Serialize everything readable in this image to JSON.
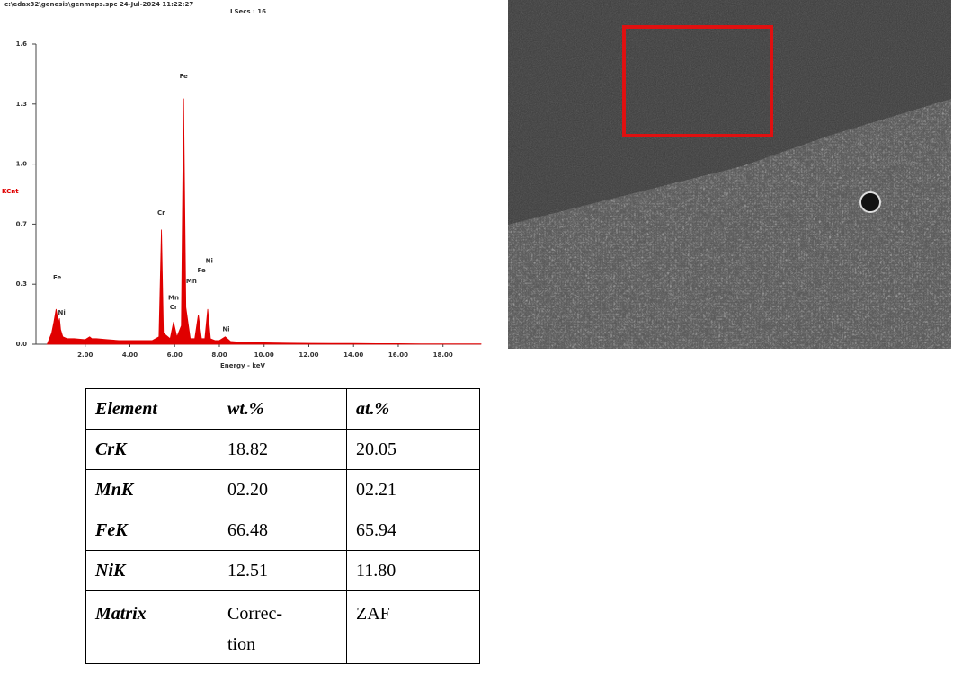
{
  "chart_data": {
    "type": "area",
    "title": "c:\\edax32\\genesis\\genmaps.spc 24-Jul-2024 11:22:27",
    "subtitle": "LSecs : 16",
    "x_label": "Energy - keV",
    "y_label": "KCnt",
    "xlim": [
      0,
      19.7
    ],
    "ylim": [
      0,
      1.625
    ],
    "xticks": [
      {
        "value": 2,
        "label": "2.00"
      },
      {
        "value": 4,
        "label": "4.00"
      },
      {
        "value": 6,
        "label": "6.00"
      },
      {
        "value": 8,
        "label": "8.00"
      },
      {
        "value": 10,
        "label": "10.00"
      },
      {
        "value": 12,
        "label": "12.00"
      },
      {
        "value": 14,
        "label": "14.00"
      },
      {
        "value": 16,
        "label": "16.00"
      },
      {
        "value": 18,
        "label": "18.00"
      }
    ],
    "yticks": [
      {
        "value": 0,
        "label": "0.0"
      },
      {
        "value": 0.325,
        "label": "0.3"
      },
      {
        "value": 0.65,
        "label": "0.7"
      },
      {
        "value": 0.975,
        "label": "1.0"
      },
      {
        "value": 1.3,
        "label": "1.3"
      },
      {
        "value": 1.625,
        "label": "1.6"
      }
    ],
    "color": "#e00000",
    "x": [
      0.3,
      0.5,
      0.6,
      0.7,
      0.8,
      0.85,
      0.9,
      1.0,
      1.2,
      1.5,
      2.0,
      2.2,
      2.3,
      2.5,
      3.0,
      3.5,
      4.0,
      4.5,
      5.0,
      5.3,
      5.41,
      5.5,
      5.8,
      5.95,
      6.1,
      6.3,
      6.4,
      6.5,
      6.7,
      6.9,
      7.06,
      7.2,
      7.35,
      7.48,
      7.6,
      7.8,
      8.0,
      8.26,
      8.5,
      9.0,
      10,
      11,
      12,
      13,
      14,
      15,
      16,
      17,
      18,
      19,
      19.7
    ],
    "values": [
      0,
      0.06,
      0.12,
      0.19,
      0.12,
      0.14,
      0.08,
      0.04,
      0.03,
      0.03,
      0.025,
      0.04,
      0.03,
      0.03,
      0.025,
      0.02,
      0.02,
      0.02,
      0.02,
      0.04,
      0.62,
      0.06,
      0.03,
      0.12,
      0.04,
      0.1,
      1.33,
      0.2,
      0.03,
      0.03,
      0.16,
      0.03,
      0.03,
      0.19,
      0.03,
      0.02,
      0.02,
      0.04,
      0.015,
      0.01,
      0.008,
      0.006,
      0.005,
      0.004,
      0.004,
      0.003,
      0.003,
      0.002,
      0.002,
      0.002,
      0.002
    ],
    "annotations": [
      {
        "text": "Fe",
        "x": 0.75,
        "y": 0.36
      },
      {
        "text": "Ni",
        "x": 0.95,
        "y": 0.17
      },
      {
        "text": "Cr",
        "x": 5.4,
        "y": 0.71
      },
      {
        "text": "Fe",
        "x": 6.4,
        "y": 1.45
      },
      {
        "text": "Mn",
        "x": 5.95,
        "y": 0.25
      },
      {
        "text": "Cr",
        "x": 5.95,
        "y": 0.2
      },
      {
        "text": "Mn",
        "x": 6.75,
        "y": 0.34
      },
      {
        "text": "Fe",
        "x": 7.2,
        "y": 0.4
      },
      {
        "text": "Ni",
        "x": 7.55,
        "y": 0.45
      },
      {
        "text": "Ni",
        "x": 8.3,
        "y": 0.08
      }
    ]
  },
  "table": {
    "header": [
      "Element",
      "wt.%",
      "at.%"
    ],
    "rows": [
      [
        "CrK",
        "18.82",
        "20.05"
      ],
      [
        "MnK",
        "02.20",
        "02.21"
      ],
      [
        "FeK",
        "66.48",
        "65.94"
      ],
      [
        "NiK",
        "12.51",
        "11.80"
      ],
      [
        "Matrix",
        "Correc-tion",
        "ZAF"
      ]
    ]
  }
}
